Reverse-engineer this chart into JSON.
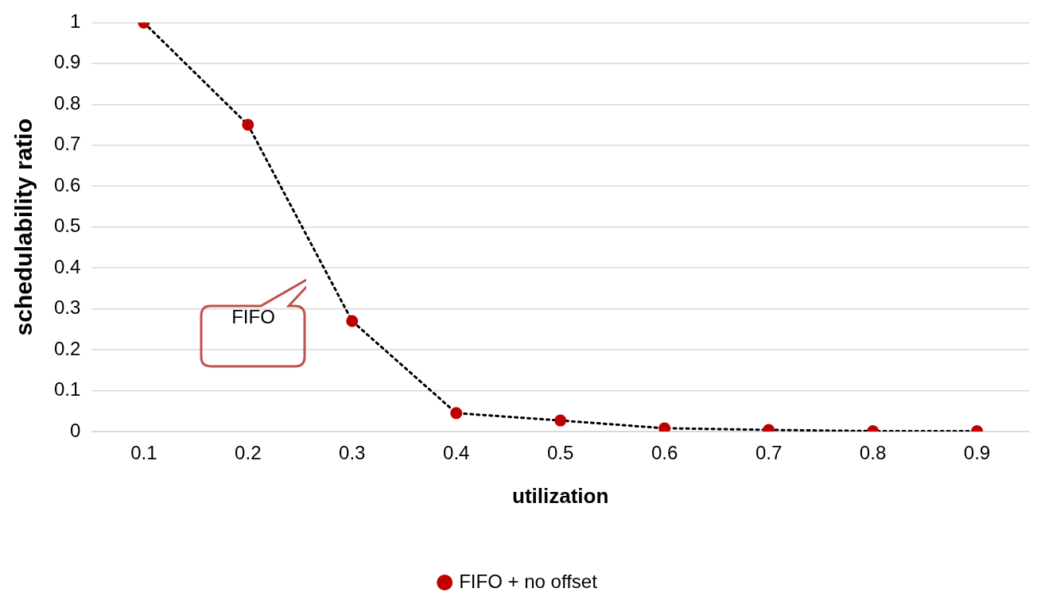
{
  "chart_data": {
    "type": "line",
    "xlabel": "utilization",
    "ylabel": "schedulability ratio",
    "categories": [
      "0.1",
      "0.2",
      "0.3",
      "0.4",
      "0.5",
      "0.6",
      "0.7",
      "0.8",
      "0.9"
    ],
    "series": [
      {
        "name": "FIFO + no offset",
        "color": "#c00000",
        "values": [
          1,
          0.75,
          0.27,
          0.045,
          0.027,
          0.008,
          0.004,
          0.001,
          0.001
        ]
      }
    ],
    "ylim": [
      0,
      1
    ],
    "yticks": [
      0,
      0.1,
      0.2,
      0.3,
      0.4,
      0.5,
      0.6,
      0.7,
      0.8,
      0.9,
      1
    ],
    "grid": "y",
    "legend": "bottom",
    "marker": "circle",
    "line_style": "dotted",
    "annotations": [
      "FIFO"
    ]
  }
}
